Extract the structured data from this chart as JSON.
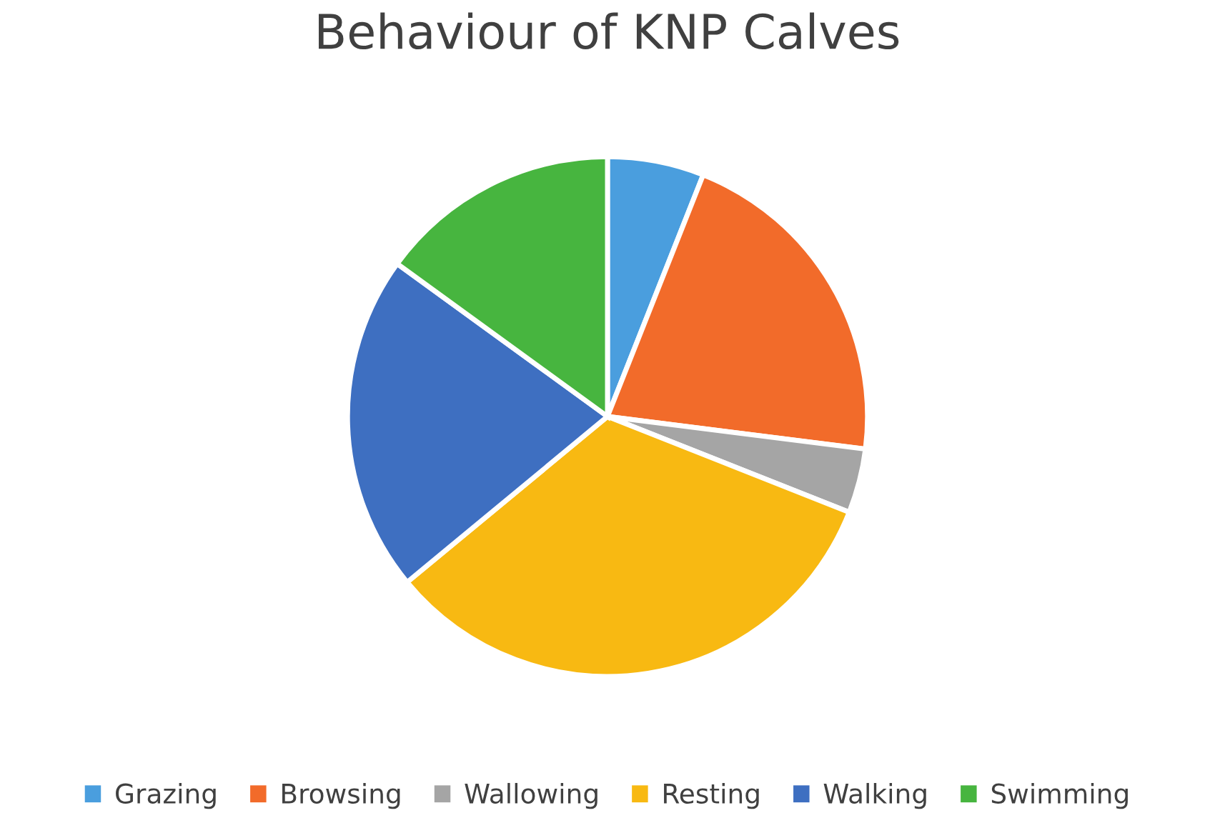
{
  "chart_data": {
    "type": "pie",
    "title": "Behaviour of KNP Calves",
    "categories": [
      "Grazing",
      "Browsing",
      "Wallowing",
      "Resting",
      "Walking",
      "Swimming"
    ],
    "values": [
      6,
      21,
      4,
      33,
      21,
      15
    ],
    "colors": [
      "#4a9ede",
      "#f26b2a",
      "#a5a5a5",
      "#f8b912",
      "#3e6fc1",
      "#47b53f"
    ],
    "legend": "bottom"
  }
}
